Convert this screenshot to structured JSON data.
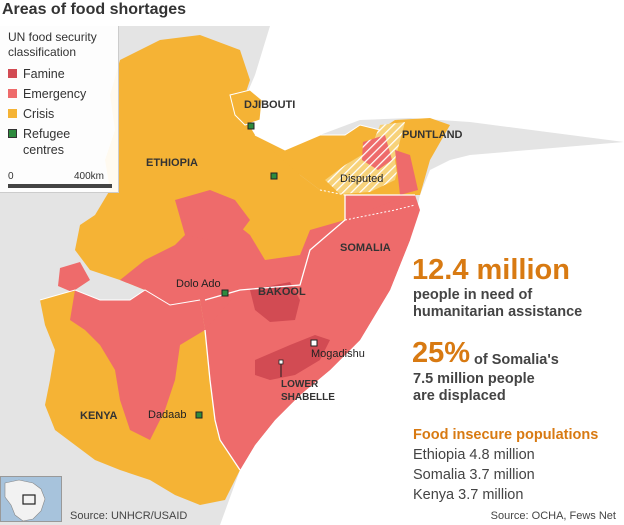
{
  "title": "Areas of food shortages",
  "legend": {
    "title": "UN food security classification",
    "items": [
      {
        "label": "Famine",
        "color": "#d24b53"
      },
      {
        "label": "Emergency",
        "color": "#ee6b6b"
      },
      {
        "label": "Crisis",
        "color": "#f5b335"
      },
      {
        "label": "Refugee centres",
        "color": "#2e8b3e"
      }
    ],
    "scale_zero": "0",
    "scale_max": "400km"
  },
  "map_labels": {
    "djibouti": "DJIBOUTI",
    "ethiopia": "ETHIOPIA",
    "puntland": "PUNTLAND",
    "disputed": "Disputed",
    "somalia": "SOMALIA",
    "dolo_ado": "Dolo Ado",
    "bakool": "BAKOOL",
    "mogadishu": "Mogadishu",
    "lower_shabelle_1": "LOWER",
    "lower_shabelle_2": "SHABELLE",
    "kenya": "KENYA",
    "dadaab": "Dadaab"
  },
  "stats": {
    "people_in_need": "12.4 million",
    "people_in_need_text_1": "people in need of",
    "people_in_need_text_2": "humanitarian assistance",
    "displaced_pct": "25%",
    "displaced_text_1": "of Somalia's",
    "displaced_text_2": "7.5 million people",
    "displaced_text_3": "are displaced"
  },
  "food_insecure": {
    "title": "Food insecure populations",
    "rows": [
      "Ethiopia 4.8 million",
      "Somalia 3.7 million",
      "Kenya 3.7 million"
    ]
  },
  "sources": {
    "left": "Source: UNHCR/USAID",
    "right": "Source: OCHA, Fews Net"
  }
}
